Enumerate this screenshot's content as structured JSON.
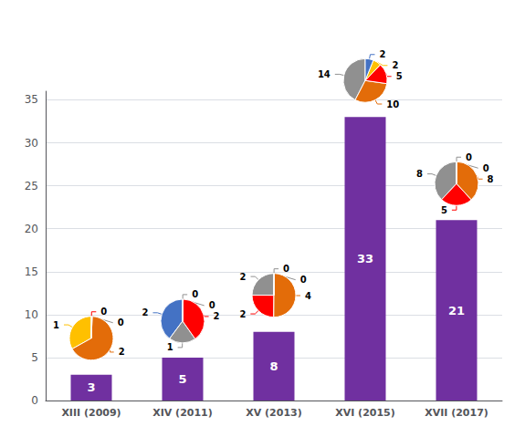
{
  "chart_data": [
    {
      "type": "bar",
      "categories": [
        "XIII (2009)",
        "XIV (2011)",
        "XV (2013)",
        "XVI (2015)",
        "XVII (2017)"
      ],
      "values": [
        3,
        5,
        8,
        33,
        21
      ],
      "color": "#7030A0",
      "ylim": [
        0,
        36
      ],
      "yticks": [
        0,
        5,
        10,
        15,
        20,
        25,
        30,
        35
      ],
      "grid": true,
      "data_labels": true
    },
    {
      "type": "pie",
      "values": [
        1,
        2,
        0.01,
        0.01
      ],
      "value_labels": [
        "1",
        "2",
        "0",
        "0"
      ],
      "colors": [
        "#FFC000",
        "#E36C09",
        "#909090",
        "#FF0000"
      ],
      "data_labels": true
    },
    {
      "type": "pie",
      "values": [
        2,
        1,
        2,
        0.01,
        0.01
      ],
      "value_labels": [
        "2",
        "1",
        "2",
        "0",
        "0"
      ],
      "colors": [
        "#4472C4",
        "#909090",
        "#FF0000",
        "#909090",
        "#909090"
      ],
      "data_labels": true
    },
    {
      "type": "pie",
      "values": [
        2,
        2,
        4,
        0.01,
        0.01
      ],
      "value_labels": [
        "2",
        "2",
        "4",
        "0",
        "0"
      ],
      "colors": [
        "#909090",
        "#FF0000",
        "#E36C09",
        "#909090",
        "#909090"
      ],
      "data_labels": true
    },
    {
      "type": "pie",
      "values": [
        14,
        10,
        5,
        2,
        2
      ],
      "value_labels": [
        "14",
        "10",
        "5",
        "2",
        "2"
      ],
      "colors": [
        "#909090",
        "#E36C09",
        "#FF0000",
        "#FFC000",
        "#4472C4"
      ],
      "data_labels": true
    },
    {
      "type": "pie",
      "values": [
        8,
        5,
        8,
        0.01,
        0.01
      ],
      "value_labels": [
        "8",
        "5",
        "8",
        "0",
        "0"
      ],
      "colors": [
        "#909090",
        "#FF0000",
        "#E36C09",
        "#909090",
        "#909090"
      ],
      "data_labels": true
    }
  ]
}
